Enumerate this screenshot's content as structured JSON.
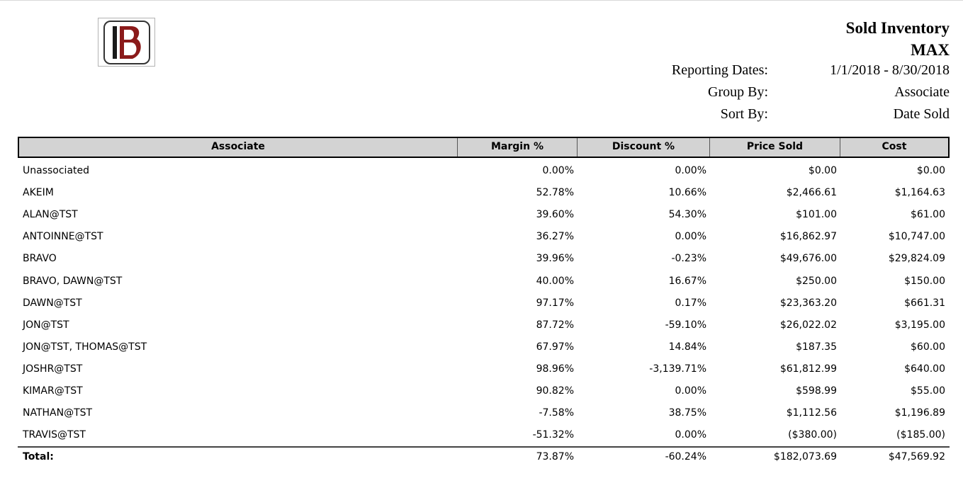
{
  "report": {
    "title": "Sold Inventory",
    "subtitle": "MAX",
    "meta": [
      {
        "label": "Reporting Dates:",
        "value": "1/1/2018 - 8/30/2018"
      },
      {
        "label": "Group By:",
        "value": "Associate"
      },
      {
        "label": "Sort By:",
        "value": "Date Sold"
      }
    ]
  },
  "logo": {
    "name": "brand-logo",
    "letter": "B",
    "colors": {
      "dark": "#1a1a1a",
      "accent": "#8b1a1a"
    }
  },
  "table": {
    "columns": [
      "Associate",
      "Margin %",
      "Discount %",
      "Price Sold",
      "Cost"
    ],
    "rows": [
      [
        "Unassociated",
        "0.00%",
        "0.00%",
        "$0.00",
        "$0.00"
      ],
      [
        "AKEIM",
        "52.78%",
        "10.66%",
        "$2,466.61",
        "$1,164.63"
      ],
      [
        "ALAN@TST",
        "39.60%",
        "54.30%",
        "$101.00",
        "$61.00"
      ],
      [
        "ANTOINNE@TST",
        "36.27%",
        "0.00%",
        "$16,862.97",
        "$10,747.00"
      ],
      [
        "BRAVO",
        "39.96%",
        "-0.23%",
        "$49,676.00",
        "$29,824.09"
      ],
      [
        "BRAVO, DAWN@TST",
        "40.00%",
        "16.67%",
        "$250.00",
        "$150.00"
      ],
      [
        "DAWN@TST",
        "97.17%",
        "0.17%",
        "$23,363.20",
        "$661.31"
      ],
      [
        "JON@TST",
        "87.72%",
        "-59.10%",
        "$26,022.02",
        "$3,195.00"
      ],
      [
        "JON@TST, THOMAS@TST",
        "67.97%",
        "14.84%",
        "$187.35",
        "$60.00"
      ],
      [
        "JOSHR@TST",
        "98.96%",
        "-3,139.71%",
        "$61,812.99",
        "$640.00"
      ],
      [
        "KIMAR@TST",
        "90.82%",
        "0.00%",
        "$598.99",
        "$55.00"
      ],
      [
        "NATHAN@TST",
        "-7.58%",
        "38.75%",
        "$1,112.56",
        "$1,196.89"
      ],
      [
        "TRAVIS@TST",
        "-51.32%",
        "0.00%",
        "($380.00)",
        "($185.00)"
      ]
    ],
    "total": [
      "Total:",
      "73.87%",
      "-60.24%",
      "$182,073.69",
      "$47,569.92"
    ]
  }
}
